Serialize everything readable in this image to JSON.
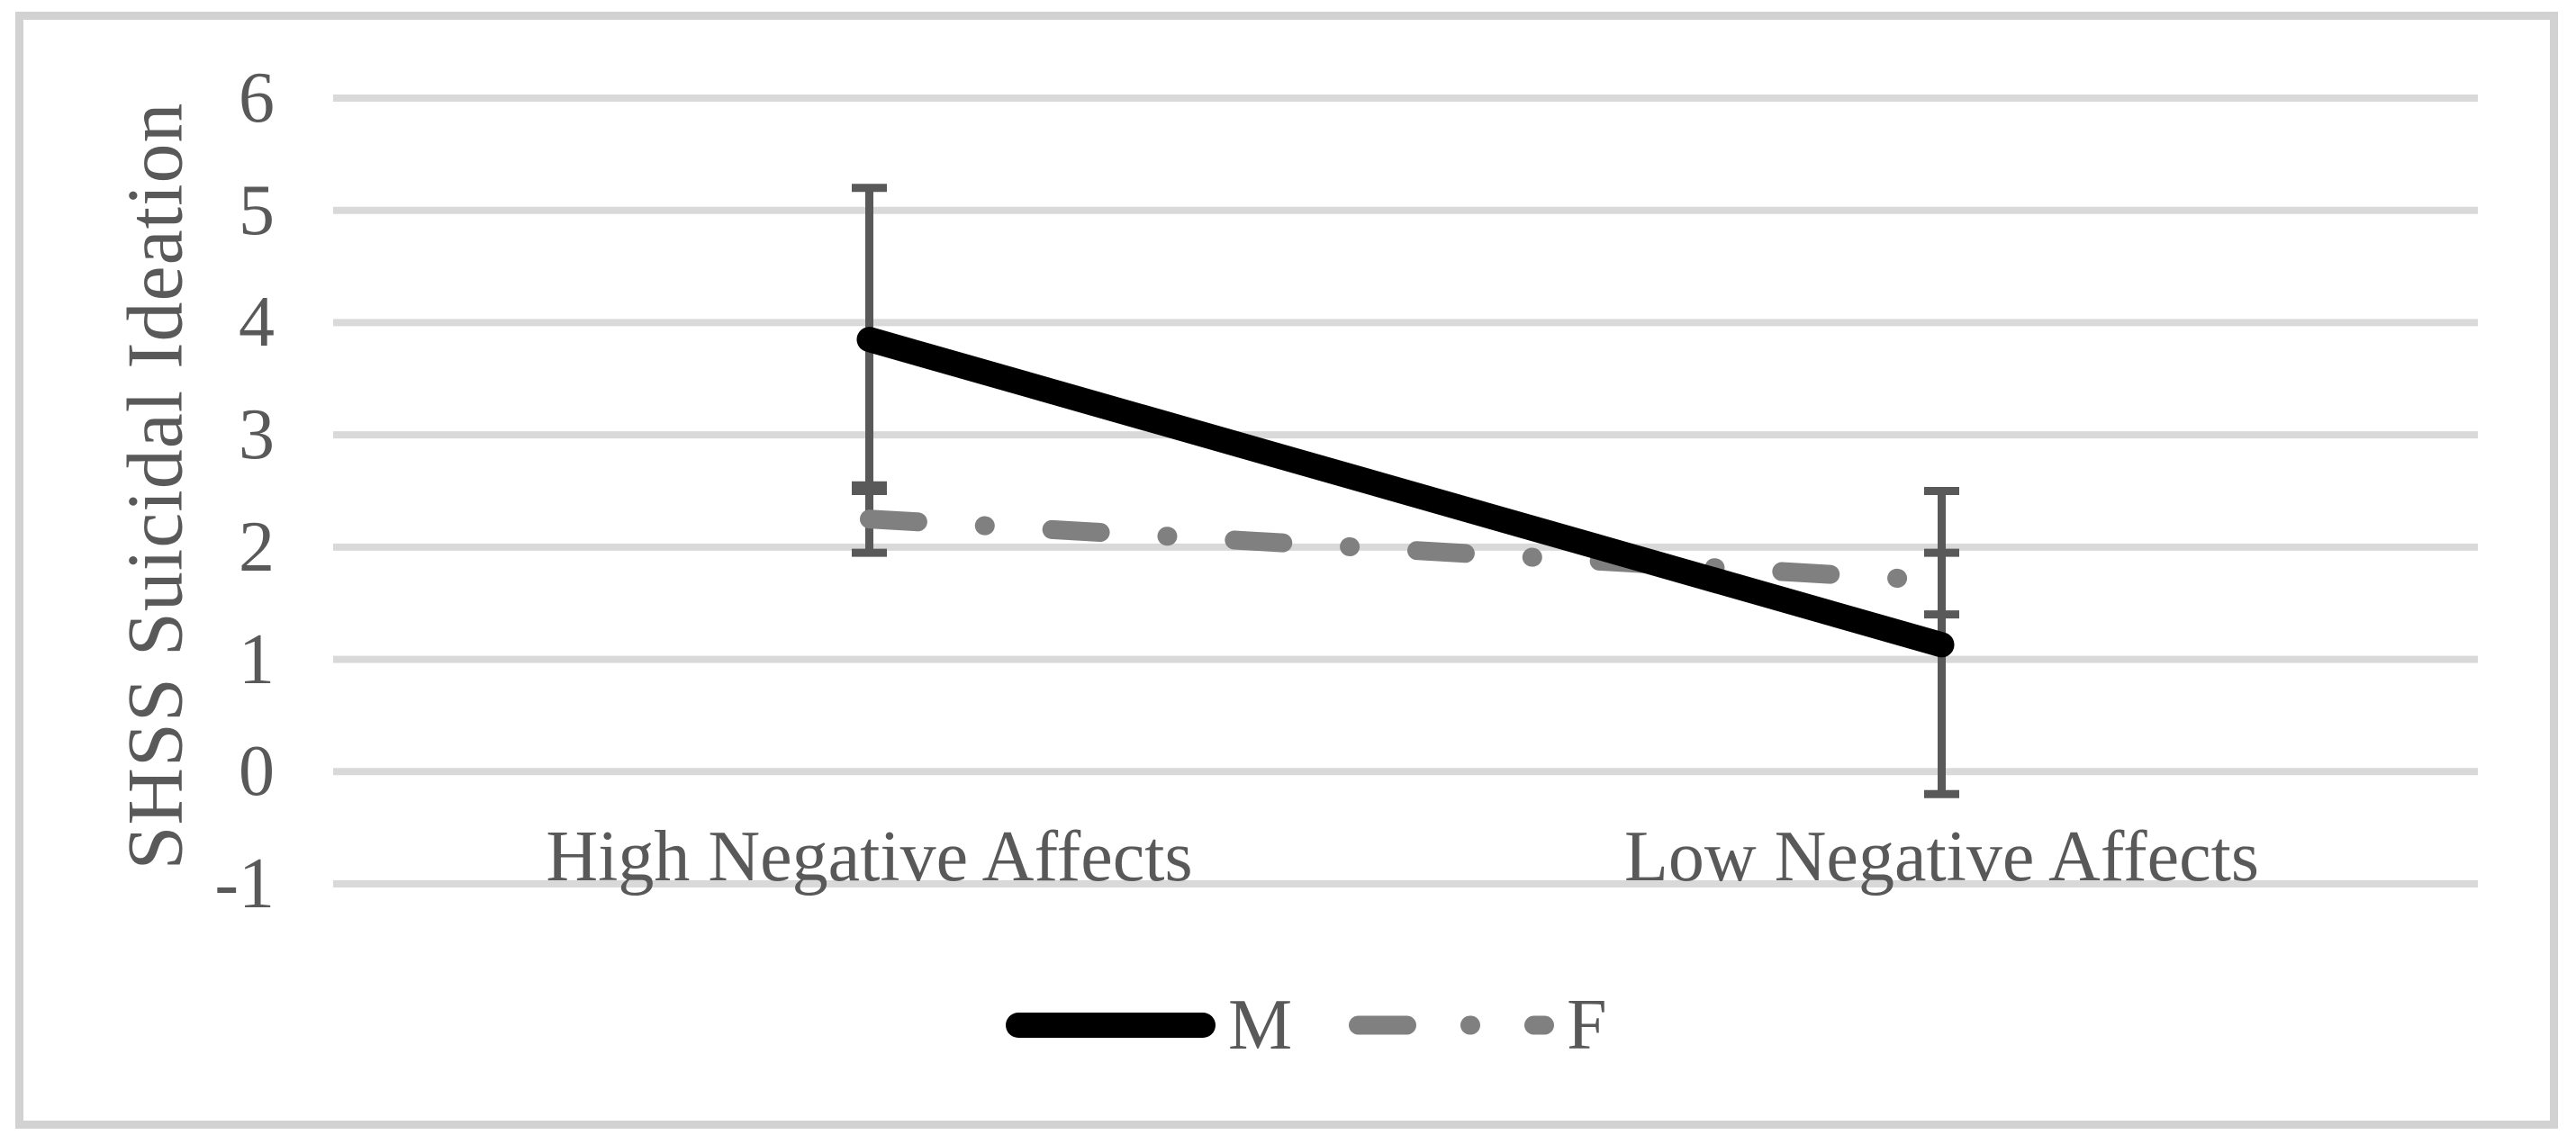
{
  "chart_data": {
    "type": "line",
    "title": "",
    "xlabel": "",
    "ylabel": "SHSS Suicidal Ideation",
    "categories": [
      "High Negative Affects",
      "Low Negative Affects"
    ],
    "y_ticks": [
      6,
      5,
      4,
      3,
      2,
      1,
      0,
      -1
    ],
    "ylim": [
      -1,
      6
    ],
    "grid": "horizontal",
    "legend_position": "bottom-center",
    "series": [
      {
        "name": "M",
        "line_style": "solid",
        "color": "#000000",
        "values": [
          3.85,
          1.13
        ],
        "error_bars": {
          "low": [
            2.5,
            -0.2
          ],
          "high": [
            5.2,
            2.5
          ]
        },
        "error_color": "#595959"
      },
      {
        "name": "F",
        "line_style": "dash-dot",
        "color": "#808080",
        "values": [
          2.25,
          1.7
        ],
        "error_bars": {
          "low": [
            1.95,
            1.4
          ],
          "high": [
            2.55,
            1.95
          ]
        },
        "error_color": "#595959"
      }
    ],
    "colors": {
      "gridline": "#D9D9D9",
      "figure_border": "#D2D2D2",
      "text": "#595959",
      "background": "#FFFFFF"
    }
  }
}
